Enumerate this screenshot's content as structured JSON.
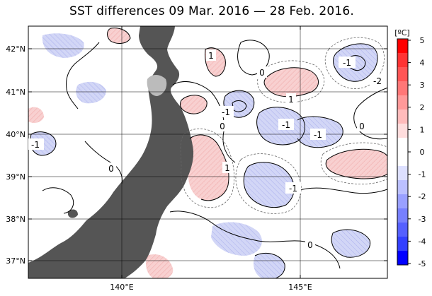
{
  "title": "SST differences 09 Mar. 2016 — 28 Feb. 2016.",
  "colorbar": {
    "unit": "[ºC]",
    "ticks": [
      "5",
      "4",
      "3",
      "2",
      "1",
      "0",
      "-1",
      "-2",
      "-3",
      "-4",
      "-5"
    ],
    "colors": [
      "#ff0000",
      "#ff3333",
      "#ff5555",
      "#ff7777",
      "#ff9999",
      "#ffbbbb",
      "#ffdddd",
      "#ffffff",
      "#ffffff",
      "#dde0ff",
      "#bbc0ff",
      "#99a0ff",
      "#7780ff",
      "#5560ff",
      "#3340ff",
      "#0000ff"
    ]
  },
  "axes": {
    "lat_labels": [
      "42°N",
      "41°N",
      "40°N",
      "39°N",
      "38°N",
      "37°N"
    ],
    "lon_labels": [
      "140°E",
      "145°E"
    ]
  },
  "contour_labels": [
    "1",
    "0",
    "-1",
    "-2",
    "-1",
    "1",
    "-1",
    "-1",
    "-1",
    "0",
    "0",
    "-1",
    "1",
    "-1",
    "0"
  ],
  "colors": {
    "land": "#555555",
    "warm": "#f6cccc",
    "cool": "#ccd0f4",
    "contour": "#000000"
  }
}
